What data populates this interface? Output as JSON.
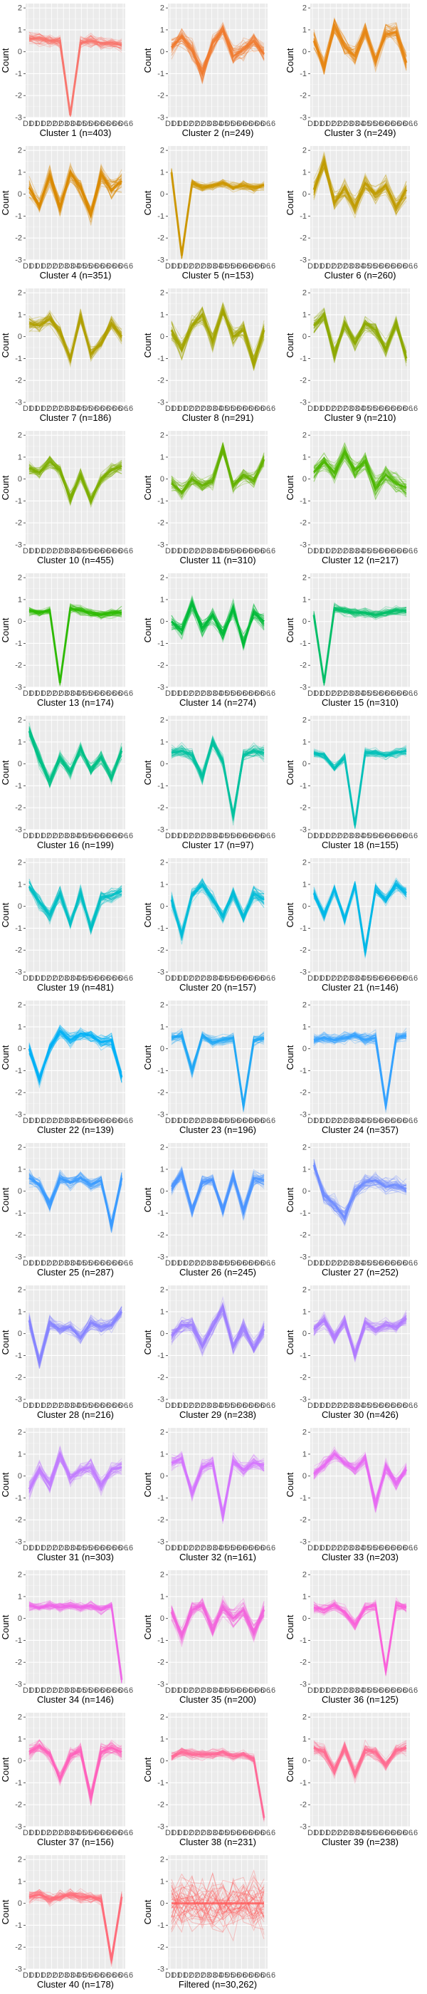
{
  "chart_data": [
    {
      "type": "line",
      "title": "Cluster 1 (n=403)",
      "ylabel": "Count",
      "ylim": [
        -3,
        2.2
      ],
      "grid": true,
      "color": "#F8766D",
      "center": [
        0.6,
        0.6,
        0.5,
        0.5,
        -2.9,
        0.4,
        0.5,
        0.4,
        0.4,
        0.3
      ],
      "spread": 0.5
    },
    {
      "type": "line",
      "title": "Cluster 2 (n=249)",
      "ylabel": "Count",
      "ylim": [
        -3,
        2.2
      ],
      "grid": true,
      "color": "#F07A2E",
      "center": [
        0.2,
        0.7,
        0.1,
        -1.0,
        0.4,
        1.0,
        -0.2,
        0.1,
        0.5,
        -0.1
      ],
      "spread": 0.8
    },
    {
      "type": "line",
      "title": "Cluster 3 (n=249)",
      "ylabel": "Count",
      "ylim": [
        -3,
        2.2
      ],
      "grid": true,
      "color": "#E68613",
      "center": [
        0.5,
        -0.7,
        1.2,
        0.2,
        -0.2,
        1.0,
        -0.4,
        0.8,
        0.9,
        -0.5
      ],
      "spread": 0.8
    },
    {
      "type": "line",
      "title": "Cluster 4 (n=351)",
      "ylabel": "Count",
      "ylim": [
        -3,
        2.2
      ],
      "grid": true,
      "color": "#D98A00",
      "center": [
        0.3,
        -0.5,
        0.8,
        -0.6,
        1.0,
        0.3,
        -0.9,
        0.9,
        0.2,
        0.6
      ],
      "spread": 0.8
    },
    {
      "type": "line",
      "title": "Cluster 5 (n=153)",
      "ylabel": "Count",
      "ylim": [
        -3,
        2.2
      ],
      "grid": true,
      "color": "#CD9600",
      "center": [
        1.0,
        -2.8,
        0.5,
        0.3,
        0.4,
        0.5,
        0.3,
        0.4,
        0.3,
        0.4
      ],
      "spread": 0.4
    },
    {
      "type": "line",
      "title": "Cluster 6 (n=260)",
      "ylabel": "Count",
      "ylim": [
        -3,
        2.2
      ],
      "grid": true,
      "color": "#C09B00",
      "center": [
        0.2,
        1.5,
        -0.4,
        0.3,
        -0.6,
        0.5,
        0.0,
        0.4,
        -0.6,
        0.2
      ],
      "spread": 0.8
    },
    {
      "type": "line",
      "title": "Cluster 7 (n=186)",
      "ylabel": "Count",
      "ylim": [
        -3,
        2.2
      ],
      "grid": true,
      "color": "#B0A000",
      "center": [
        0.6,
        0.5,
        0.8,
        0.2,
        -1.0,
        0.9,
        -0.8,
        -0.3,
        0.6,
        0.0
      ],
      "spread": 0.6
    },
    {
      "type": "line",
      "title": "Cluster 8 (n=291)",
      "ylabel": "Count",
      "ylim": [
        -3,
        2.2
      ],
      "grid": true,
      "color": "#A3A500",
      "center": [
        0.3,
        -0.6,
        0.5,
        1.0,
        -0.2,
        1.2,
        0.0,
        0.3,
        -1.2,
        0.3
      ],
      "spread": 0.8
    },
    {
      "type": "line",
      "title": "Cluster 9 (n=210)",
      "ylabel": "Count",
      "ylim": [
        -3,
        2.2
      ],
      "grid": true,
      "color": "#8DA900",
      "center": [
        0.5,
        1.0,
        -0.8,
        0.6,
        -0.3,
        0.6,
        0.3,
        -0.6,
        0.6,
        -1.0
      ],
      "spread": 0.7
    },
    {
      "type": "line",
      "title": "Cluster 10 (n=455)",
      "ylabel": "Count",
      "ylim": [
        -3,
        2.2
      ],
      "grid": true,
      "color": "#7CAE00",
      "center": [
        0.5,
        0.3,
        0.8,
        0.4,
        -0.9,
        0.2,
        -1.0,
        0.0,
        0.4,
        0.6
      ],
      "spread": 0.6
    },
    {
      "type": "line",
      "title": "Cluster 11 (n=310)",
      "ylabel": "Count",
      "ylim": [
        -3,
        2.2
      ],
      "grid": true,
      "color": "#64B200",
      "center": [
        -0.2,
        -0.6,
        0.0,
        -0.3,
        -0.1,
        1.4,
        -0.3,
        0.2,
        -0.1,
        0.9
      ],
      "spread": 0.6
    },
    {
      "type": "line",
      "title": "Cluster 12 (n=217)",
      "ylabel": "Count",
      "ylim": [
        -3,
        2.2
      ],
      "grid": true,
      "color": "#4BB600",
      "center": [
        0.3,
        0.8,
        0.3,
        1.2,
        0.4,
        0.8,
        -0.4,
        0.2,
        -0.2,
        -0.4
      ],
      "spread": 0.8
    },
    {
      "type": "line",
      "title": "Cluster 13 (n=174)",
      "ylabel": "Count",
      "ylim": [
        -3,
        2.2
      ],
      "grid": true,
      "color": "#2CBA00",
      "center": [
        0.5,
        0.4,
        0.5,
        -2.8,
        0.6,
        0.5,
        0.4,
        0.3,
        0.4,
        0.4
      ],
      "spread": 0.4
    },
    {
      "type": "line",
      "title": "Cluster 14 (n=274)",
      "ylabel": "Count",
      "ylim": [
        -3,
        2.2
      ],
      "grid": true,
      "color": "#00BA38",
      "center": [
        0.0,
        -0.4,
        0.8,
        -0.3,
        0.3,
        -0.6,
        0.6,
        -1.0,
        0.4,
        0.0
      ],
      "spread": 0.7
    },
    {
      "type": "line",
      "title": "Cluster 15 (n=310)",
      "ylabel": "Count",
      "ylim": [
        -3,
        2.2
      ],
      "grid": true,
      "color": "#00BE67",
      "center": [
        0.3,
        -2.8,
        0.6,
        0.5,
        0.4,
        0.4,
        0.3,
        0.4,
        0.5,
        0.5
      ],
      "spread": 0.4
    },
    {
      "type": "line",
      "title": "Cluster 16 (n=199)",
      "ylabel": "Count",
      "ylim": [
        -3,
        2.2
      ],
      "grid": true,
      "color": "#00C086",
      "center": [
        1.5,
        0.2,
        -0.8,
        0.3,
        -0.4,
        0.7,
        -0.3,
        0.3,
        -0.6,
        0.6
      ],
      "spread": 0.6
    },
    {
      "type": "line",
      "title": "Cluster 17 (n=97)",
      "ylabel": "Count",
      "ylim": [
        -3,
        2.2
      ],
      "grid": true,
      "color": "#00C19F",
      "center": [
        0.5,
        0.6,
        0.4,
        -0.6,
        1.0,
        0.1,
        -2.4,
        0.4,
        0.6,
        0.5
      ],
      "spread": 0.6
    },
    {
      "type": "line",
      "title": "Cluster 18 (n=155)",
      "ylabel": "Count",
      "ylim": [
        -3,
        2.2
      ],
      "grid": true,
      "color": "#00C0B8",
      "center": [
        0.5,
        0.4,
        -0.2,
        0.3,
        -2.8,
        0.5,
        0.5,
        0.4,
        0.5,
        0.6
      ],
      "spread": 0.4
    },
    {
      "type": "line",
      "title": "Cluster 19 (n=481)",
      "ylabel": "Count",
      "ylim": [
        -3,
        2.2
      ],
      "grid": true,
      "color": "#00BFC4",
      "center": [
        0.9,
        0.2,
        -0.4,
        0.6,
        -0.8,
        0.6,
        -1.0,
        0.4,
        0.5,
        0.7
      ],
      "spread": 0.6
    },
    {
      "type": "line",
      "title": "Cluster 20 (n=157)",
      "ylabel": "Count",
      "ylim": [
        -3,
        2.2
      ],
      "grid": true,
      "color": "#00BCD8",
      "center": [
        0.3,
        -1.3,
        0.5,
        1.0,
        0.3,
        -0.5,
        0.6,
        -0.5,
        0.6,
        0.3
      ],
      "spread": 0.6
    },
    {
      "type": "line",
      "title": "Cluster 21 (n=146)",
      "ylabel": "Count",
      "ylim": [
        -3,
        2.2
      ],
      "grid": true,
      "color": "#00B8E7",
      "center": [
        0.6,
        -0.4,
        0.8,
        -0.6,
        1.0,
        -2.1,
        0.8,
        0.3,
        1.0,
        0.6
      ],
      "spread": 0.5
    },
    {
      "type": "line",
      "title": "Cluster 22 (n=139)",
      "ylabel": "Count",
      "ylim": [
        -3,
        2.2
      ],
      "grid": true,
      "color": "#00B0F6",
      "center": [
        0.0,
        -1.4,
        0.0,
        0.8,
        0.4,
        0.7,
        0.6,
        0.3,
        0.4,
        -1.3
      ],
      "spread": 0.6
    },
    {
      "type": "line",
      "title": "Cluster 23 (n=196)",
      "ylabel": "Count",
      "ylim": [
        -3,
        2.2
      ],
      "grid": true,
      "color": "#22A8F5",
      "center": [
        0.5,
        0.6,
        -1.0,
        0.6,
        0.3,
        0.4,
        0.5,
        -2.6,
        0.4,
        0.5
      ],
      "spread": 0.5
    },
    {
      "type": "line",
      "title": "Cluster 24 (n=357)",
      "ylabel": "Count",
      "ylim": [
        -3,
        2.2
      ],
      "grid": true,
      "color": "#35A2FF",
      "center": [
        0.4,
        0.5,
        0.4,
        0.5,
        0.6,
        0.4,
        0.5,
        -2.6,
        0.5,
        0.6
      ],
      "spread": 0.5
    },
    {
      "type": "line",
      "title": "Cluster 25 (n=287)",
      "ylabel": "Count",
      "ylim": [
        -3,
        2.2
      ],
      "grid": true,
      "color": "#3B9BFF",
      "center": [
        0.6,
        0.3,
        -0.6,
        0.6,
        0.4,
        0.6,
        0.3,
        0.5,
        -1.6,
        0.6
      ],
      "spread": 0.6
    },
    {
      "type": "line",
      "title": "Cluster 26 (n=245)",
      "ylabel": "Count",
      "ylim": [
        -3,
        2.2
      ],
      "grid": true,
      "color": "#4A94FF",
      "center": [
        0.2,
        0.8,
        -0.9,
        0.4,
        0.5,
        -0.9,
        0.7,
        -0.9,
        0.6,
        0.5
      ],
      "spread": 0.6
    },
    {
      "type": "line",
      "title": "Cluster 27 (n=252)",
      "ylabel": "Count",
      "ylim": [
        -3,
        2.2
      ],
      "grid": true,
      "color": "#6F8CFF",
      "center": [
        1.2,
        -0.2,
        -0.6,
        -1.2,
        0.0,
        0.4,
        0.5,
        0.2,
        0.3,
        0.1
      ],
      "spread": 0.7
    },
    {
      "type": "line",
      "title": "Cluster 28 (n=216)",
      "ylabel": "Count",
      "ylim": [
        -3,
        2.2
      ],
      "grid": true,
      "color": "#8684FF",
      "center": [
        0.6,
        -1.3,
        0.5,
        0.2,
        0.3,
        -0.2,
        0.5,
        0.3,
        0.4,
        1.0
      ],
      "spread": 0.6
    },
    {
      "type": "line",
      "title": "Cluster 29 (n=238)",
      "ylabel": "Count",
      "ylim": [
        -3,
        2.2
      ],
      "grid": true,
      "color": "#9F7FFF",
      "center": [
        -0.1,
        0.4,
        0.4,
        -0.6,
        0.3,
        1.2,
        -0.6,
        0.3,
        -0.7,
        0.2
      ],
      "spread": 0.7
    },
    {
      "type": "line",
      "title": "Cluster 30 (n=426)",
      "ylabel": "Count",
      "ylim": [
        -3,
        2.2
      ],
      "grid": true,
      "color": "#B27BFF",
      "center": [
        0.2,
        0.6,
        -0.2,
        0.6,
        -1.0,
        0.5,
        0.2,
        0.4,
        0.3,
        0.7
      ],
      "spread": 0.6
    },
    {
      "type": "line",
      "title": "Cluster 31 (n=303)",
      "ylabel": "Count",
      "ylim": [
        -3,
        2.2
      ],
      "grid": true,
      "color": "#C27CFF",
      "center": [
        -0.6,
        0.3,
        -0.4,
        1.0,
        -0.1,
        0.3,
        0.4,
        -0.4,
        0.3,
        0.4
      ],
      "spread": 0.7
    },
    {
      "type": "line",
      "title": "Cluster 32 (n=161)",
      "ylabel": "Count",
      "ylim": [
        -3,
        2.2
      ],
      "grid": true,
      "color": "#D575FE",
      "center": [
        0.6,
        0.8,
        -0.8,
        0.4,
        0.6,
        -1.8,
        0.7,
        0.3,
        0.6,
        0.5
      ],
      "spread": 0.6
    },
    {
      "type": "line",
      "title": "Cluster 33 (n=203)",
      "ylabel": "Count",
      "ylim": [
        -3,
        2.2
      ],
      "grid": true,
      "color": "#E76BF3",
      "center": [
        0.1,
        0.5,
        1.0,
        0.6,
        0.3,
        0.8,
        -1.3,
        0.4,
        -0.4,
        0.3
      ],
      "spread": 0.6
    },
    {
      "type": "line",
      "title": "Cluster 34 (n=146)",
      "ylabel": "Count",
      "ylim": [
        -3,
        2.2
      ],
      "grid": true,
      "color": "#EE67E8",
      "center": [
        0.6,
        0.5,
        0.6,
        0.5,
        0.6,
        0.5,
        0.6,
        0.4,
        0.6,
        -2.8
      ],
      "spread": 0.4
    },
    {
      "type": "line",
      "title": "Cluster 35 (n=200)",
      "ylabel": "Count",
      "ylim": [
        -3,
        2.2
      ],
      "grid": true,
      "color": "#F265DC",
      "center": [
        0.3,
        -0.8,
        0.4,
        0.6,
        -0.5,
        0.5,
        0.0,
        0.4,
        -0.6,
        0.4
      ],
      "spread": 0.8
    },
    {
      "type": "line",
      "title": "Cluster 36 (n=125)",
      "ylabel": "Count",
      "ylim": [
        -3,
        2.2
      ],
      "grid": true,
      "color": "#FA62DB",
      "center": [
        0.5,
        0.4,
        0.6,
        0.3,
        -0.3,
        0.5,
        0.6,
        -2.4,
        0.6,
        0.5
      ],
      "spread": 0.5
    },
    {
      "type": "line",
      "title": "Cluster 37 (n=156)",
      "ylabel": "Count",
      "ylim": [
        -3,
        2.2
      ],
      "grid": true,
      "color": "#FF62BC",
      "center": [
        0.4,
        0.7,
        0.3,
        -0.8,
        0.2,
        0.5,
        -1.7,
        0.4,
        0.6,
        0.4
      ],
      "spread": 0.6
    },
    {
      "type": "line",
      "title": "Cluster 38 (n=231)",
      "ylabel": "Count",
      "ylim": [
        -3,
        2.2
      ],
      "grid": true,
      "color": "#FF6A98",
      "center": [
        0.2,
        0.4,
        0.3,
        0.3,
        0.3,
        0.4,
        0.2,
        0.3,
        0.1,
        -2.6
      ],
      "spread": 0.4
    },
    {
      "type": "line",
      "title": "Cluster 39 (n=238)",
      "ylabel": "Count",
      "ylim": [
        -3,
        2.2
      ],
      "grid": true,
      "color": "#FF6C91",
      "center": [
        0.6,
        0.4,
        -0.4,
        0.6,
        -0.6,
        0.5,
        0.4,
        -0.2,
        0.5,
        0.6
      ],
      "spread": 0.6
    },
    {
      "type": "line",
      "title": "Cluster 40 (n=178)",
      "ylabel": "Count",
      "ylim": [
        -3,
        2.2
      ],
      "grid": true,
      "color": "#FF6C7A",
      "center": [
        0.3,
        0.4,
        0.2,
        0.3,
        0.4,
        0.3,
        0.3,
        0.2,
        -2.6,
        0.3
      ],
      "spread": 0.5
    },
    {
      "type": "line",
      "title": "Filtered (n=30,262)",
      "ylabel": "Count",
      "ylim": [
        -3,
        2.2
      ],
      "grid": true,
      "color": "#FF5B5B",
      "center": [
        0.0,
        0.0,
        0.0,
        0.0,
        0.0,
        0.0,
        0.0,
        0.0,
        0.0,
        0.0
      ],
      "spread": 2.4
    }
  ],
  "x_tick_labels": [
    "D1",
    "D1",
    "D1",
    "D2",
    "D2",
    "D2",
    "D3",
    "D3",
    "D4",
    "D5",
    "D5",
    "D6",
    "D6",
    "D6",
    "D6",
    "D6",
    "D6"
  ],
  "x_tick_tail": ".6",
  "y_ticks": [
    -3,
    -2,
    -1,
    0,
    1,
    2
  ],
  "ncols": 3
}
